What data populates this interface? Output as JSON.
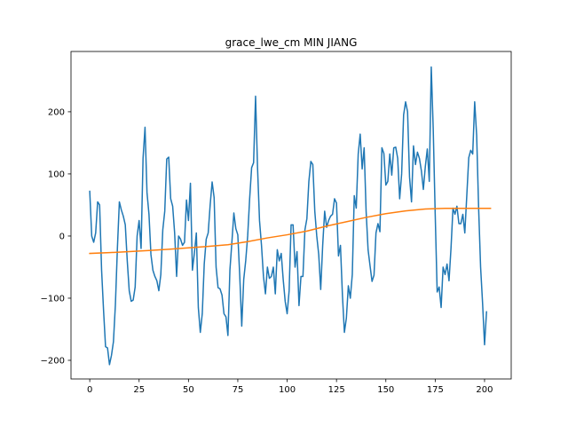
{
  "chart_data": {
    "type": "line",
    "title": "grace_lwe_cm MIN JIANG",
    "xlabel": "",
    "ylabel": "",
    "xlim": [
      -9.5,
      213.5
    ],
    "ylim": [
      -230,
      297
    ],
    "grid": false,
    "x_ticks": [
      0,
      25,
      50,
      75,
      100,
      125,
      150,
      175,
      200
    ],
    "y_ticks": [
      -200,
      -100,
      0,
      100,
      200
    ],
    "x_tick_labels": [
      "0",
      "25",
      "50",
      "75",
      "100",
      "125",
      "150",
      "175",
      "200"
    ],
    "y_tick_labels": [
      "−200",
      "−100",
      "0",
      "100",
      "200"
    ],
    "series": [
      {
        "color": "#1f77b4",
        "points": [
          [
            0,
            72
          ],
          [
            1,
            0
          ],
          [
            2,
            -10
          ],
          [
            3,
            5
          ],
          [
            4,
            55
          ],
          [
            5,
            50
          ],
          [
            6,
            -55
          ],
          [
            7,
            -120
          ],
          [
            8,
            -178
          ],
          [
            9,
            -180
          ],
          [
            10,
            -207
          ],
          [
            11,
            -192
          ],
          [
            12,
            -170
          ],
          [
            13,
            -110
          ],
          [
            14,
            -20
          ],
          [
            15,
            55
          ],
          [
            16,
            42
          ],
          [
            17,
            32
          ],
          [
            18,
            18
          ],
          [
            19,
            -40
          ],
          [
            20,
            -88
          ],
          [
            21,
            -105
          ],
          [
            22,
            -103
          ],
          [
            23,
            -82
          ],
          [
            24,
            0
          ],
          [
            25,
            25
          ],
          [
            26,
            -20
          ],
          [
            27,
            125
          ],
          [
            28,
            175
          ],
          [
            29,
            70
          ],
          [
            30,
            35
          ],
          [
            31,
            -30
          ],
          [
            32,
            -55
          ],
          [
            33,
            -65
          ],
          [
            34,
            -72
          ],
          [
            35,
            -88
          ],
          [
            36,
            -62
          ],
          [
            37,
            10
          ],
          [
            38,
            40
          ],
          [
            39,
            124
          ],
          [
            40,
            127
          ],
          [
            41,
            60
          ],
          [
            42,
            48
          ],
          [
            43,
            5
          ],
          [
            44,
            -65
          ],
          [
            45,
            0
          ],
          [
            46,
            -5
          ],
          [
            47,
            -15
          ],
          [
            48,
            -10
          ],
          [
            49,
            58
          ],
          [
            50,
            25
          ],
          [
            51,
            85
          ],
          [
            52,
            -55
          ],
          [
            53,
            -28
          ],
          [
            54,
            5
          ],
          [
            55,
            -115
          ],
          [
            56,
            -155
          ],
          [
            57,
            -125
          ],
          [
            58,
            -45
          ],
          [
            59,
            -5
          ],
          [
            60,
            5
          ],
          [
            61,
            50
          ],
          [
            62,
            87
          ],
          [
            63,
            62
          ],
          [
            64,
            -50
          ],
          [
            65,
            -83
          ],
          [
            66,
            -85
          ],
          [
            67,
            -95
          ],
          [
            68,
            -125
          ],
          [
            69,
            -130
          ],
          [
            70,
            -160
          ],
          [
            71,
            -55
          ],
          [
            72,
            -10
          ],
          [
            73,
            37
          ],
          [
            74,
            12
          ],
          [
            75,
            2
          ],
          [
            76,
            -65
          ],
          [
            77,
            -145
          ],
          [
            78,
            -70
          ],
          [
            79,
            -40
          ],
          [
            80,
            0
          ],
          [
            81,
            60
          ],
          [
            82,
            110
          ],
          [
            83,
            118
          ],
          [
            84,
            225
          ],
          [
            85,
            110
          ],
          [
            86,
            25
          ],
          [
            87,
            -15
          ],
          [
            88,
            -65
          ],
          [
            89,
            -93
          ],
          [
            90,
            -50
          ],
          [
            91,
            -68
          ],
          [
            92,
            -65
          ],
          [
            93,
            -50
          ],
          [
            94,
            -93
          ],
          [
            95,
            -22
          ],
          [
            96,
            -40
          ],
          [
            97,
            -28
          ],
          [
            98,
            -70
          ],
          [
            99,
            -105
          ],
          [
            100,
            -125
          ],
          [
            101,
            -88
          ],
          [
            102,
            18
          ],
          [
            103,
            18
          ],
          [
            104,
            -50
          ],
          [
            105,
            -25
          ],
          [
            106,
            -112
          ],
          [
            107,
            -65
          ],
          [
            108,
            -65
          ],
          [
            109,
            10
          ],
          [
            110,
            28
          ],
          [
            111,
            88
          ],
          [
            112,
            120
          ],
          [
            113,
            115
          ],
          [
            114,
            40
          ],
          [
            115,
            0
          ],
          [
            116,
            -30
          ],
          [
            117,
            -86
          ],
          [
            118,
            -15
          ],
          [
            119,
            40
          ],
          [
            120,
            14
          ],
          [
            121,
            25
          ],
          [
            122,
            32
          ],
          [
            123,
            35
          ],
          [
            124,
            60
          ],
          [
            125,
            53
          ],
          [
            126,
            -32
          ],
          [
            127,
            -15
          ],
          [
            128,
            -95
          ],
          [
            129,
            -155
          ],
          [
            130,
            -132
          ],
          [
            131,
            -80
          ],
          [
            132,
            -100
          ],
          [
            133,
            -62
          ],
          [
            134,
            65
          ],
          [
            135,
            45
          ],
          [
            136,
            132
          ],
          [
            137,
            164
          ],
          [
            138,
            108
          ],
          [
            139,
            142
          ],
          [
            140,
            40
          ],
          [
            141,
            -22
          ],
          [
            142,
            -48
          ],
          [
            143,
            -73
          ],
          [
            144,
            -63
          ],
          [
            145,
            5
          ],
          [
            146,
            20
          ],
          [
            147,
            7
          ],
          [
            148,
            142
          ],
          [
            149,
            133
          ],
          [
            150,
            82
          ],
          [
            151,
            88
          ],
          [
            152,
            132
          ],
          [
            153,
            98
          ],
          [
            154,
            142
          ],
          [
            155,
            143
          ],
          [
            156,
            125
          ],
          [
            157,
            60
          ],
          [
            158,
            100
          ],
          [
            159,
            195
          ],
          [
            160,
            216
          ],
          [
            161,
            200
          ],
          [
            162,
            95
          ],
          [
            163,
            55
          ],
          [
            164,
            145
          ],
          [
            165,
            115
          ],
          [
            166,
            135
          ],
          [
            167,
            125
          ],
          [
            168,
            105
          ],
          [
            169,
            75
          ],
          [
            170,
            112
          ],
          [
            171,
            140
          ],
          [
            172,
            88
          ],
          [
            173,
            272
          ],
          [
            174,
            172
          ],
          [
            175,
            35
          ],
          [
            176,
            -90
          ],
          [
            177,
            -82
          ],
          [
            178,
            -115
          ],
          [
            179,
            -50
          ],
          [
            180,
            -62
          ],
          [
            181,
            -45
          ],
          [
            182,
            -72
          ],
          [
            183,
            -20
          ],
          [
            184,
            45
          ],
          [
            185,
            35
          ],
          [
            186,
            48
          ],
          [
            187,
            20
          ],
          [
            188,
            20
          ],
          [
            189,
            35
          ],
          [
            190,
            5
          ],
          [
            191,
            65
          ],
          [
            192,
            126
          ],
          [
            193,
            138
          ],
          [
            194,
            132
          ],
          [
            195,
            216
          ],
          [
            196,
            162
          ],
          [
            197,
            45
          ],
          [
            198,
            -50
          ],
          [
            199,
            -108
          ],
          [
            200,
            -175
          ],
          [
            201,
            -122
          ]
        ]
      },
      {
        "color": "#ff7f0e",
        "points": [
          [
            0,
            -28
          ],
          [
            10,
            -26.7
          ],
          [
            20,
            -25
          ],
          [
            30,
            -23.3
          ],
          [
            40,
            -21.3
          ],
          [
            50,
            -19
          ],
          [
            60,
            -16.6
          ],
          [
            70,
            -14
          ],
          [
            80,
            -9
          ],
          [
            90,
            -3
          ],
          [
            100,
            2
          ],
          [
            110,
            8
          ],
          [
            120,
            16
          ],
          [
            130,
            23
          ],
          [
            140,
            30
          ],
          [
            150,
            36
          ],
          [
            160,
            40.5
          ],
          [
            170,
            43.5
          ],
          [
            180,
            44.5
          ],
          [
            190,
            44.5
          ],
          [
            200,
            44.5
          ],
          [
            203,
            44.5
          ]
        ]
      }
    ]
  }
}
